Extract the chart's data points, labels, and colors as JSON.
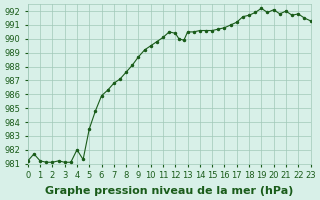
{
  "x": [
    0,
    0.5,
    1,
    1.5,
    2,
    2.5,
    3,
    3.5,
    4,
    4.5,
    5,
    5.5,
    6,
    6.5,
    7,
    7.5,
    8,
    8.5,
    9,
    9.5,
    10,
    10.5,
    11,
    11.5,
    12,
    12.3,
    12.7,
    13,
    13.5,
    14,
    14.5,
    15,
    15.5,
    16,
    16.5,
    17,
    17.5,
    18,
    18.5,
    19,
    19.5,
    20,
    20.5,
    21,
    21.5,
    22,
    22.5,
    23
  ],
  "y": [
    981.2,
    981.7,
    981.2,
    981.1,
    981.1,
    981.2,
    981.1,
    981.1,
    982.0,
    981.3,
    983.5,
    984.8,
    985.9,
    986.3,
    986.8,
    987.1,
    987.6,
    988.1,
    988.7,
    989.2,
    989.5,
    989.8,
    990.1,
    990.5,
    990.4,
    990.0,
    989.9,
    990.5,
    990.5,
    990.6,
    990.6,
    990.6,
    990.7,
    990.8,
    991.0,
    991.2,
    991.6,
    991.7,
    991.9,
    992.2,
    991.9,
    992.1,
    991.8,
    992.0,
    991.7,
    991.8,
    991.5,
    991.3
  ],
  "ylim": [
    981,
    992.5
  ],
  "yticks": [
    981,
    982,
    983,
    984,
    985,
    986,
    987,
    988,
    989,
    990,
    991,
    992
  ],
  "xlim": [
    0,
    23
  ],
  "xticks": [
    0,
    1,
    2,
    3,
    4,
    5,
    6,
    7,
    8,
    9,
    10,
    11,
    12,
    13,
    14,
    15,
    16,
    17,
    18,
    19,
    20,
    21,
    22,
    23
  ],
  "xtick_labels": [
    "0",
    "1",
    "2",
    "3",
    "4",
    "5",
    "6",
    "7",
    "8",
    "9",
    "10",
    "11",
    "12",
    "13",
    "14",
    "15",
    "16",
    "17",
    "18",
    "19",
    "20",
    "21",
    "22",
    "23"
  ],
  "line_color": "#1a5c1a",
  "marker_color": "#1a5c1a",
  "bg_color": "#d8f0e8",
  "grid_color": "#a0c8b8",
  "xlabel": "Graphe pression niveau de la mer (hPa)",
  "xlabel_fontsize": 8,
  "tick_fontsize": 6,
  "fig_bg": "#d8f0e8"
}
